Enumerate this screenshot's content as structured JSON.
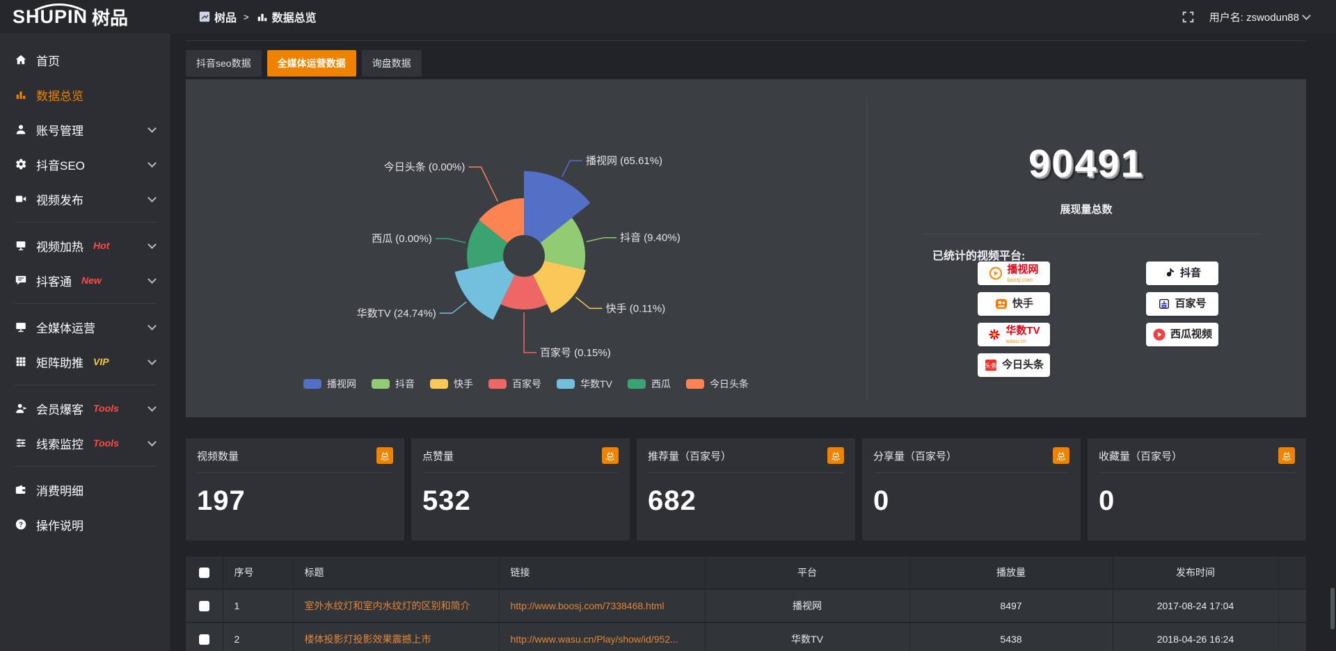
{
  "topbar": {
    "logo_en": "SHUPIN",
    "logo_cn": "树品",
    "breadcrumb": [
      {
        "label": "树品",
        "icon": "bc-square"
      },
      {
        "label": "数据总览",
        "icon": "bc-bars"
      }
    ],
    "username_label": "用户名: zswodun88",
    "fullscreen_icon": "fullscreen-icon"
  },
  "colors": {
    "accent_orange": "#ef8300",
    "hot_red": "#ff4a46",
    "vip_yellow": "#f5c542",
    "link_orange": "#e2863a"
  },
  "sidebar": {
    "items": [
      {
        "icon": "home",
        "label": "首页",
        "active": false,
        "chevron": false,
        "badge": "",
        "badge_color": "",
        "divider_after": false
      },
      {
        "icon": "bars",
        "label": "数据总览",
        "active": true,
        "chevron": false,
        "badge": "",
        "badge_color": "",
        "divider_after": false
      },
      {
        "icon": "user",
        "label": "账号管理",
        "active": false,
        "chevron": true,
        "badge": "",
        "badge_color": "",
        "divider_after": false
      },
      {
        "icon": "gear",
        "label": "抖音SEO",
        "active": false,
        "chevron": true,
        "badge": "",
        "badge_color": "",
        "divider_after": false
      },
      {
        "icon": "video",
        "label": "视频发布",
        "active": false,
        "chevron": true,
        "badge": "",
        "badge_color": "",
        "divider_after": true
      },
      {
        "icon": "screen",
        "label": "视频加热",
        "active": false,
        "chevron": true,
        "badge": "Hot",
        "badge_color": "#ff4a46",
        "divider_after": false
      },
      {
        "icon": "chat",
        "label": "抖客通",
        "active": false,
        "chevron": true,
        "badge": "New",
        "badge_color": "#ff4a46",
        "divider_after": true
      },
      {
        "icon": "monitor",
        "label": "全媒体运营",
        "active": false,
        "chevron": true,
        "badge": "",
        "badge_color": "",
        "divider_after": false
      },
      {
        "icon": "grid",
        "label": "矩阵助推",
        "active": false,
        "chevron": true,
        "badge": "VIP",
        "badge_color": "#f5c542",
        "divider_after": true
      },
      {
        "icon": "person",
        "label": "会员爆客",
        "active": false,
        "chevron": true,
        "badge": "Tools",
        "badge_color": "#ff4a46",
        "divider_after": false
      },
      {
        "icon": "sliders",
        "label": "线索监控",
        "active": false,
        "chevron": true,
        "badge": "Tools",
        "badge_color": "#ff4a46",
        "divider_after": true
      },
      {
        "icon": "wallet",
        "label": "消费明细",
        "active": false,
        "chevron": false,
        "badge": "",
        "badge_color": "",
        "divider_after": false
      },
      {
        "icon": "question",
        "label": "操作说明",
        "active": false,
        "chevron": false,
        "badge": "",
        "badge_color": "",
        "divider_after": false
      }
    ]
  },
  "tabs": [
    {
      "label": "抖音seo数据",
      "active": false
    },
    {
      "label": "全媒体运营数据",
      "active": true
    },
    {
      "label": "询盘数据",
      "active": false
    }
  ],
  "chart_data": {
    "type": "pie",
    "style": "nightingale-rose-donut",
    "label_format": "{name} ({pct}%)",
    "legend_position": "bottom",
    "series": [
      {
        "name": "播视网",
        "pct": 65.61,
        "color": "#5470c6"
      },
      {
        "name": "抖音",
        "pct": 9.4,
        "color": "#91cc75"
      },
      {
        "name": "快手",
        "pct": 0.11,
        "color": "#fac858"
      },
      {
        "name": "百家号",
        "pct": 0.15,
        "color": "#ee6666"
      },
      {
        "name": "华数TV",
        "pct": 24.74,
        "color": "#73c0de"
      },
      {
        "name": "西瓜",
        "pct": 0.0,
        "color": "#3ba272"
      },
      {
        "name": "今日头条",
        "pct": 0.0,
        "color": "#fc8452"
      }
    ],
    "layout": {
      "inner_radius": 30,
      "radii": [
        122,
        88,
        91,
        77,
        102,
        82,
        83
      ],
      "label_line_default": 26,
      "label_line_overrides": {
        "百家号": 58,
        "今日头条": 55
      }
    }
  },
  "summary": {
    "total": "90491",
    "total_label": "展现量总数",
    "platforms_label": "已统计的视频平台:",
    "platforms": [
      {
        "name": "播视网",
        "sub": "boosj.com",
        "mark": "play-circle",
        "mark_color": "#f7941d",
        "text_color": "#e60012",
        "column": 1
      },
      {
        "name": "快手",
        "sub": "",
        "mark": "kuaishou",
        "mark_color": "#ff7500",
        "text_color": "#333333",
        "column": 1
      },
      {
        "name": "华数TV",
        "sub": "wasu.cn",
        "mark": "burst",
        "mark_color": "#e60012",
        "text_color": "#e60012",
        "column": 1
      },
      {
        "name": "今日头条",
        "sub": "",
        "mark": "toutiao",
        "mark_color": "#ed3228",
        "text_color": "#222222",
        "column": 1
      },
      {
        "name": "抖音",
        "sub": "",
        "mark": "note",
        "mark_color": "#161823",
        "text_color": "#161823",
        "column": 2
      },
      {
        "name": "百家号",
        "sub": "",
        "mark": "bai",
        "mark_color": "#2932e1",
        "text_color": "#222222",
        "column": 2
      },
      {
        "name": "西瓜视频",
        "sub": "",
        "mark": "play-round",
        "mark_color": "#f04142",
        "text_color": "#222222",
        "column": 2
      }
    ]
  },
  "stat_cards": [
    {
      "label": "视频数量",
      "badge": "总",
      "value": "197"
    },
    {
      "label": "点赞量",
      "badge": "总",
      "value": "532"
    },
    {
      "label": "推荐量（百家号）",
      "badge": "总",
      "value": "682"
    },
    {
      "label": "分享量（百家号）",
      "badge": "总",
      "value": "0"
    },
    {
      "label": "收藏量（百家号）",
      "badge": "总",
      "value": "0"
    }
  ],
  "table": {
    "headers": [
      "序号",
      "标题",
      "链接",
      "平台",
      "播放量",
      "发布时间"
    ],
    "rows": [
      {
        "no": "1",
        "title": "室外水纹灯和室内水纹灯的区别和简介",
        "link": "http://www.boosj.com/7338468.html",
        "platform": "播视网",
        "plays": "8497",
        "time": "2017-08-24 17:04"
      },
      {
        "no": "2",
        "title": "楼体投影灯投影效果震撼上市",
        "link": "http://www.wasu.cn/Play/show/id/952...",
        "platform": "华数TV",
        "plays": "5438",
        "time": "2018-04-26 16:24"
      }
    ]
  }
}
